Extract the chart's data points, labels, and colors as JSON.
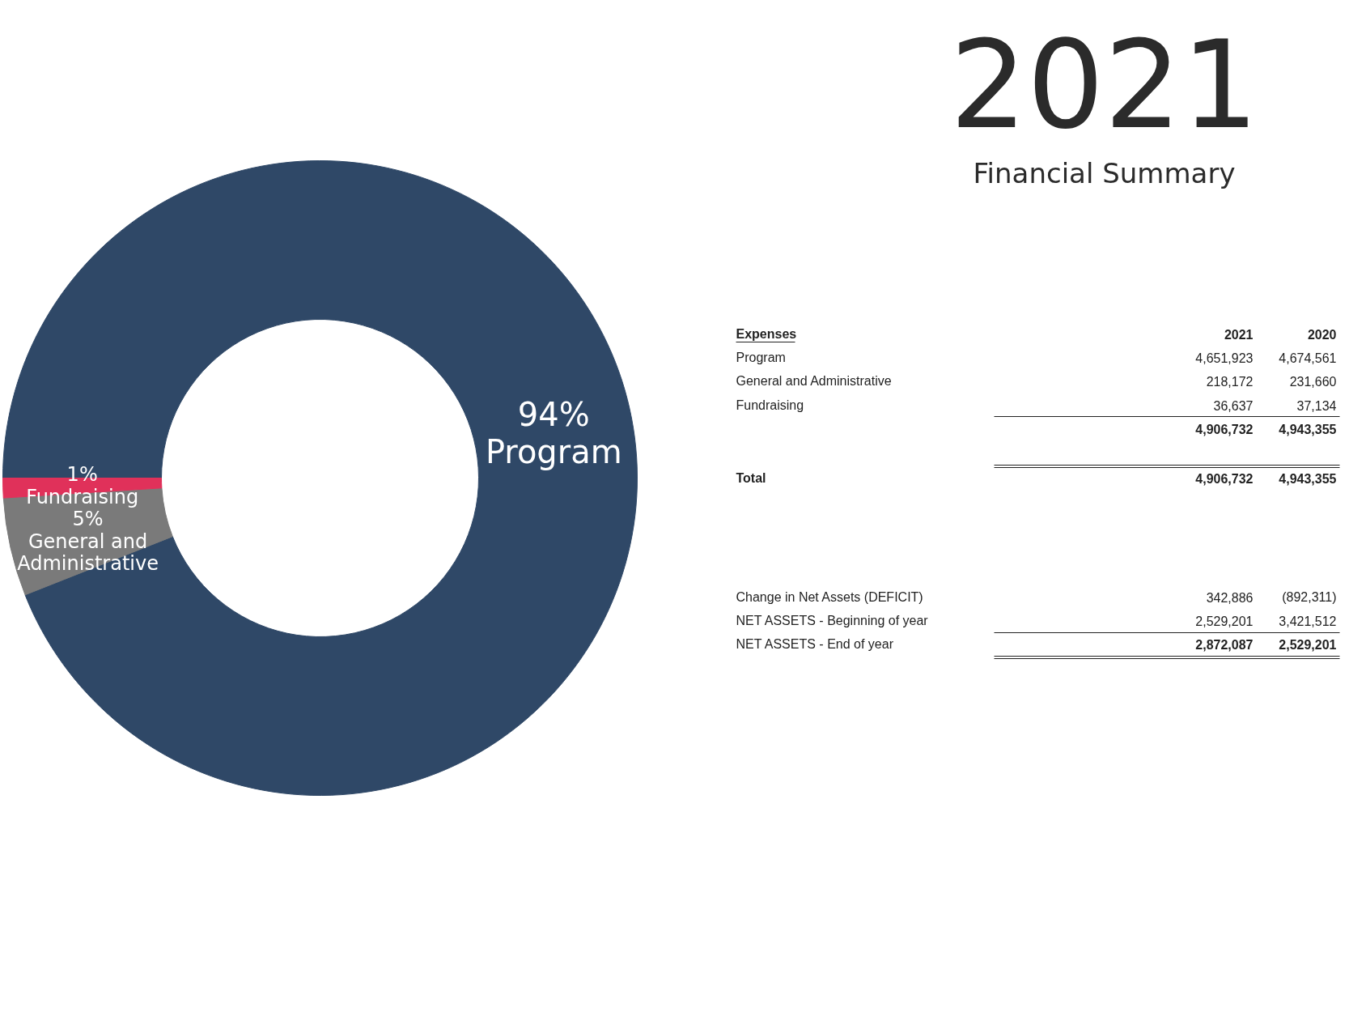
{
  "chart_data": [
    {
      "type": "donut",
      "categories": [
        "Program",
        "General and Administrative",
        "Fundraising"
      ],
      "values": [
        94,
        5,
        1
      ],
      "colors": [
        "#2f4867",
        "#7a7a7a",
        "#e0315a"
      ],
      "value_labels": [
        "94%",
        "5%",
        "1%"
      ]
    },
    {
      "type": "other",
      "title": "2021",
      "subtitle": "Financial Summary",
      "annotations": [
        "Expenses",
        "2021",
        "2020",
        "Program",
        "4,651,923",
        "4,674,561",
        "General and Administrative",
        "218,172",
        "231,660",
        "Fundraising",
        "36,637",
        "37,134",
        "4,906,732",
        "4,943,355",
        "Total",
        "4,906,732",
        "4,943,355",
        "Change in Net Assets (DEFICIT)",
        "342,886",
        "(892,311)",
        "NET ASSETS - Beginning of year",
        "2,529,201",
        "3,421,512",
        "NET ASSETS - End of year",
        "2,872,087",
        "2,529,201"
      ]
    }
  ]
}
